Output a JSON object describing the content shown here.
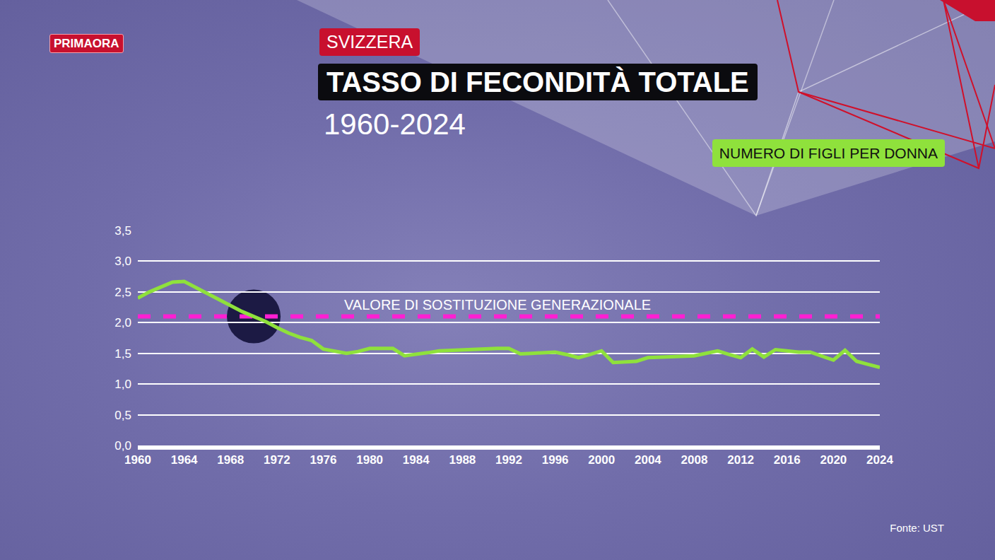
{
  "chart_data": {
    "type": "line",
    "logo": "PRIMAORA",
    "country": "SVIZZERA",
    "title": "TASSO DI FECONDITÀ TOTALE",
    "subtitle": "1960-2024",
    "y_label": "NUMERO DI FIGLI PER DONNA",
    "source": "Fonte: UST",
    "x": [
      1960,
      1961,
      1962,
      1963,
      1964,
      1965,
      1966,
      1967,
      1968,
      1969,
      1970,
      1971,
      1972,
      1973,
      1974,
      1975,
      1976,
      1977,
      1978,
      1979,
      1980,
      1981,
      1982,
      1983,
      1984,
      1985,
      1986,
      1987,
      1988,
      1989,
      1990,
      1991,
      1992,
      1993,
      1994,
      1995,
      1996,
      1997,
      1998,
      1999,
      2000,
      2001,
      2002,
      2003,
      2004,
      2005,
      2006,
      2007,
      2008,
      2009,
      2010,
      2011,
      2012,
      2013,
      2014,
      2015,
      2016,
      2017,
      2018,
      2019,
      2020,
      2021,
      2022,
      2023,
      2024
    ],
    "series": [
      {
        "color": "#8fe13c",
        "line_style": "solid",
        "values": [
          2.4,
          2.5,
          2.58,
          2.66,
          2.67,
          2.57,
          2.47,
          2.37,
          2.27,
          2.18,
          2.1,
          2.02,
          1.92,
          1.83,
          1.76,
          1.71,
          1.57,
          1.54,
          1.5,
          1.53,
          1.58,
          1.58,
          1.58,
          1.46,
          1.48,
          1.51,
          1.54,
          1.55,
          1.55,
          1.56,
          1.57,
          1.58,
          1.58,
          1.49,
          1.5,
          1.51,
          1.52,
          1.48,
          1.43,
          1.48,
          1.54,
          1.35,
          1.36,
          1.37,
          1.43,
          1.44,
          1.44,
          1.45,
          1.46,
          1.5,
          1.54,
          1.48,
          1.43,
          1.57,
          1.44,
          1.56,
          1.54,
          1.52,
          1.52,
          1.46,
          1.39,
          1.55,
          1.37,
          1.32,
          1.27
        ]
      },
      {
        "name": "VALORE DI SOSTITUZIONE GENERAZIONALE",
        "color": "#ff1fd2",
        "line_style": "dashed",
        "x": [
          1960,
          2024
        ],
        "values": [
          2.1,
          2.1
        ]
      }
    ],
    "highlight": {
      "x": 1970,
      "y": 2.1,
      "color": "#1c1a44"
    },
    "xlim": [
      1960,
      2024
    ],
    "xticks": [
      1960,
      1964,
      1968,
      1972,
      1976,
      1980,
      1984,
      1988,
      1992,
      1996,
      2000,
      2004,
      2008,
      2012,
      2016,
      2020,
      2024
    ],
    "ylim": [
      0,
      3.5
    ],
    "yticks": [
      {
        "value": 0,
        "label": "0,0"
      },
      {
        "value": 0.5,
        "label": "0,5"
      },
      {
        "value": 1,
        "label": "1,0"
      },
      {
        "value": 1.5,
        "label": "1,5"
      },
      {
        "value": 2,
        "label": "2,0"
      },
      {
        "value": 2.5,
        "label": "2,5"
      },
      {
        "value": 3,
        "label": "3,0"
      },
      {
        "value": 3.5,
        "label": "3,5"
      }
    ],
    "grid": true
  }
}
